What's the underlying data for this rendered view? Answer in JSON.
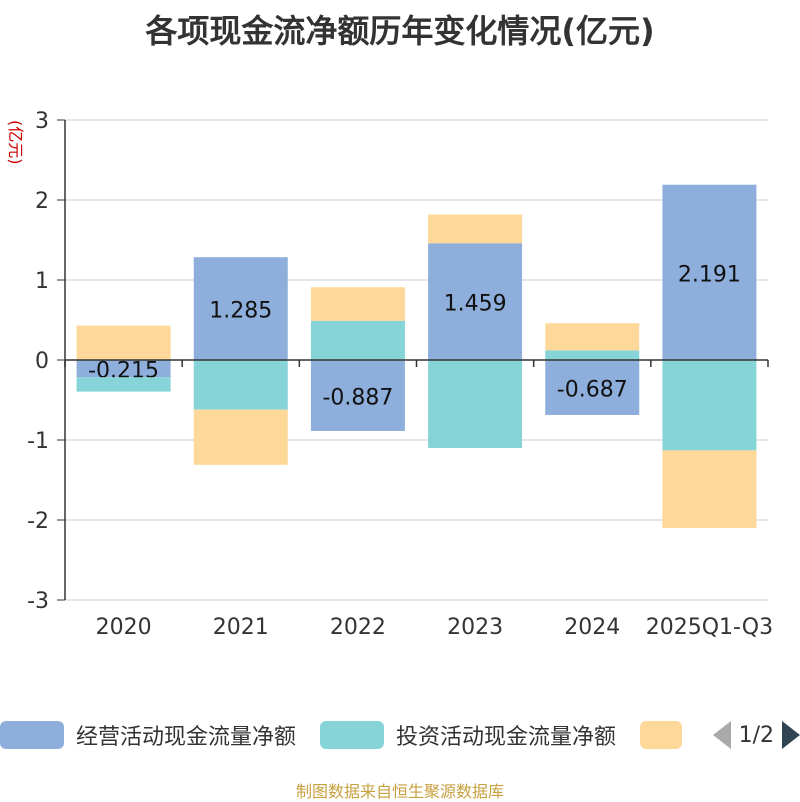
{
  "title": "各项现金流净额历年变化情况(亿元)",
  "source": "制图数据来自恒生聚源数据库",
  "pager": "1/2",
  "colors": {
    "operating": "#8eaedb",
    "investing": "#86d4d8",
    "financing": "#fdd899",
    "axis": "#333333",
    "grid": "#cccccc",
    "unit": "#cc0000"
  },
  "chart_data": {
    "type": "bar",
    "stacked": true,
    "unit_label": "(亿元)",
    "categories": [
      "2020",
      "2021",
      "2022",
      "2023",
      "2024",
      "2025Q1-Q3"
    ],
    "ylim": [
      -3,
      3
    ],
    "yticks": [
      3,
      2,
      1,
      0,
      -1,
      -2,
      -3
    ],
    "grid": true,
    "legend_position": "bottom",
    "series": [
      {
        "name": "经营活动现金流量净额",
        "color_key": "operating",
        "values": [
          -0.215,
          1.285,
          -0.887,
          1.459,
          -0.687,
          2.191
        ],
        "labels": [
          "-0.215",
          "1.285",
          "-0.887",
          "1.459",
          "-0.687",
          "2.191"
        ]
      },
      {
        "name": "投资活动现金流量净额",
        "color_key": "investing",
        "values": [
          -0.18,
          -0.62,
          0.49,
          -1.1,
          0.12,
          -1.13
        ]
      },
      {
        "name": "",
        "color_key": "financing",
        "values": [
          0.43,
          -0.69,
          0.42,
          0.36,
          0.34,
          -0.97
        ]
      }
    ]
  }
}
